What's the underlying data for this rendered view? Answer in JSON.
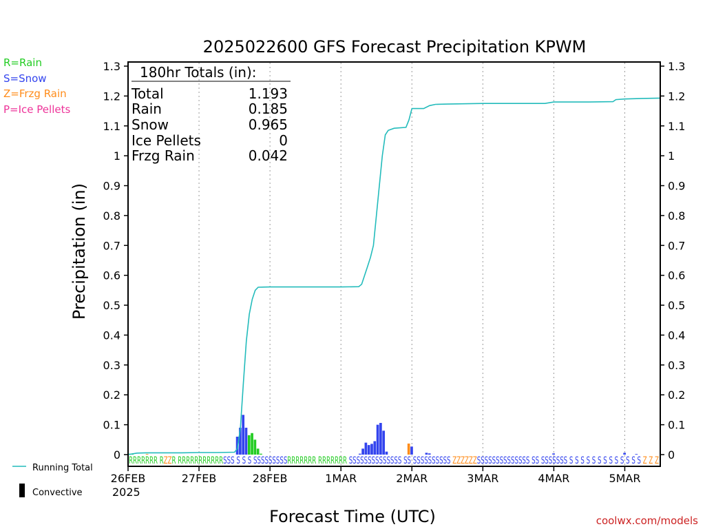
{
  "chart_data": {
    "type": "bar",
    "title": "2025022600 GFS Forecast Precipitation KPWM",
    "xlabel": "Forecast Time (UTC)",
    "ylabel": "Precipitation (in)",
    "ylim": [
      0,
      1.3
    ],
    "yticks": [
      "0",
      "0.1",
      "0.2",
      "0.3",
      "0.4",
      "0.5",
      "0.6",
      "0.7",
      "0.8",
      "0.9",
      "1",
      "1.1",
      "1.2",
      "1.3"
    ],
    "x_unit": "forecast hour",
    "xlim": [
      0,
      180
    ],
    "xticks": [
      {
        "hour": 0,
        "label": "26FEB"
      },
      {
        "hour": 24,
        "label": "27FEB"
      },
      {
        "hour": 48,
        "label": "28FEB"
      },
      {
        "hour": 72,
        "label": "1MAR"
      },
      {
        "hour": 96,
        "label": "2MAR"
      },
      {
        "hour": 120,
        "label": "3MAR"
      },
      {
        "hour": 144,
        "label": "4MAR"
      },
      {
        "hour": 168,
        "label": "5MAR"
      }
    ],
    "year_label": "2025",
    "grid": "vertical dotted at day boundaries",
    "totals_box": {
      "heading": "180hr Totals (in):",
      "rows": [
        {
          "label": "Total",
          "value": "1.193"
        },
        {
          "label": "Rain",
          "value": "0.185"
        },
        {
          "label": "Snow",
          "value": "0.965"
        },
        {
          "label": "Ice Pellets",
          "value": "0"
        },
        {
          "label": "Frzg Rain",
          "value": "0.042"
        }
      ]
    },
    "ptype_legend": [
      {
        "label": "R=Rain",
        "color": "#22cc22"
      },
      {
        "label": "S=Snow",
        "color": "#3344ee"
      },
      {
        "label": "Z=Frzg Rain",
        "color": "#ff8c1a"
      },
      {
        "label": "P=Ice Pellets",
        "color": "#ee3399"
      }
    ],
    "series_legend": [
      {
        "label": "Running Total",
        "color": "#22bbbb"
      },
      {
        "label": "Convective",
        "color": "#000000"
      }
    ],
    "running_total": {
      "name": "Running Total",
      "color": "#22bbbb",
      "points": [
        [
          0,
          0.0
        ],
        [
          3,
          0.005
        ],
        [
          6,
          0.006
        ],
        [
          12,
          0.006
        ],
        [
          18,
          0.006
        ],
        [
          24,
          0.007
        ],
        [
          30,
          0.007
        ],
        [
          36,
          0.008
        ],
        [
          37,
          0.02
        ],
        [
          38,
          0.09
        ],
        [
          39,
          0.24
        ],
        [
          40,
          0.38
        ],
        [
          41,
          0.47
        ],
        [
          42,
          0.52
        ],
        [
          43,
          0.55
        ],
        [
          44,
          0.56
        ],
        [
          48,
          0.561
        ],
        [
          54,
          0.561
        ],
        [
          60,
          0.561
        ],
        [
          66,
          0.561
        ],
        [
          72,
          0.561
        ],
        [
          78,
          0.562
        ],
        [
          79,
          0.57
        ],
        [
          80,
          0.6
        ],
        [
          81,
          0.63
        ],
        [
          82,
          0.66
        ],
        [
          83,
          0.7
        ],
        [
          84,
          0.8
        ],
        [
          85,
          0.9
        ],
        [
          86,
          1.0
        ],
        [
          87,
          1.07
        ],
        [
          88,
          1.085
        ],
        [
          90,
          1.092
        ],
        [
          94,
          1.095
        ],
        [
          95,
          1.12
        ],
        [
          96,
          1.158
        ],
        [
          100,
          1.158
        ],
        [
          102,
          1.168
        ],
        [
          104,
          1.172
        ],
        [
          108,
          1.173
        ],
        [
          120,
          1.175
        ],
        [
          132,
          1.175
        ],
        [
          141,
          1.175
        ],
        [
          144,
          1.18
        ],
        [
          156,
          1.18
        ],
        [
          164,
          1.181
        ],
        [
          165,
          1.188
        ],
        [
          168,
          1.19
        ],
        [
          174,
          1.192
        ],
        [
          180,
          1.193
        ]
      ]
    },
    "bars": [
      {
        "hour": 0.5,
        "value": 0.003,
        "type": "R"
      },
      {
        "hour": 1.5,
        "value": 0.002,
        "type": "R"
      },
      {
        "hour": 6.5,
        "value": 0.002,
        "type": "Z"
      },
      {
        "hour": 37.0,
        "value": 0.06,
        "type": "S"
      },
      {
        "hour": 38.0,
        "value": 0.09,
        "type": "S"
      },
      {
        "hour": 39.0,
        "value": 0.133,
        "type": "S"
      },
      {
        "hour": 40.0,
        "value": 0.09,
        "type": "S"
      },
      {
        "hour": 41.0,
        "value": 0.065,
        "type": "R"
      },
      {
        "hour": 42.0,
        "value": 0.072,
        "type": "R"
      },
      {
        "hour": 43.0,
        "value": 0.05,
        "type": "R"
      },
      {
        "hour": 44.0,
        "value": 0.02,
        "type": "R"
      },
      {
        "hour": 45.0,
        "value": 0.003,
        "type": "R"
      },
      {
        "hour": 78.5,
        "value": 0.003,
        "type": "S"
      },
      {
        "hour": 79.5,
        "value": 0.02,
        "type": "S"
      },
      {
        "hour": 80.5,
        "value": 0.04,
        "type": "S"
      },
      {
        "hour": 81.5,
        "value": 0.032,
        "type": "S"
      },
      {
        "hour": 82.5,
        "value": 0.036,
        "type": "S"
      },
      {
        "hour": 83.5,
        "value": 0.045,
        "type": "S"
      },
      {
        "hour": 84.5,
        "value": 0.1,
        "type": "S"
      },
      {
        "hour": 85.5,
        "value": 0.106,
        "type": "S"
      },
      {
        "hour": 86.5,
        "value": 0.08,
        "type": "S"
      },
      {
        "hour": 87.5,
        "value": 0.01,
        "type": "S"
      },
      {
        "hour": 95.0,
        "value": 0.037,
        "type": "Z"
      },
      {
        "hour": 96.0,
        "value": 0.027,
        "type": "S"
      },
      {
        "hour": 101.0,
        "value": 0.006,
        "type": "S"
      },
      {
        "hour": 102.0,
        "value": 0.004,
        "type": "S"
      },
      {
        "hour": 144.0,
        "value": 0.004,
        "type": "S"
      },
      {
        "hour": 168.0,
        "value": 0.006,
        "type": "S"
      },
      {
        "hour": 172.0,
        "value": 0.002,
        "type": "S"
      }
    ],
    "ptype_row": "RRRRRRR RZZR RRRRRRRRRRRSSS S S S SSSSSSSSSRRRRRRR RRRRRRR SSSSSSSSSSSSSS SS SSSSSSSSSS ZZZZZZSSSSSSSSSSSSSS SS SSSSSSS S S S S S S S S S S S S S Z Z Z"
  },
  "watermark": "coolwx.com/models"
}
